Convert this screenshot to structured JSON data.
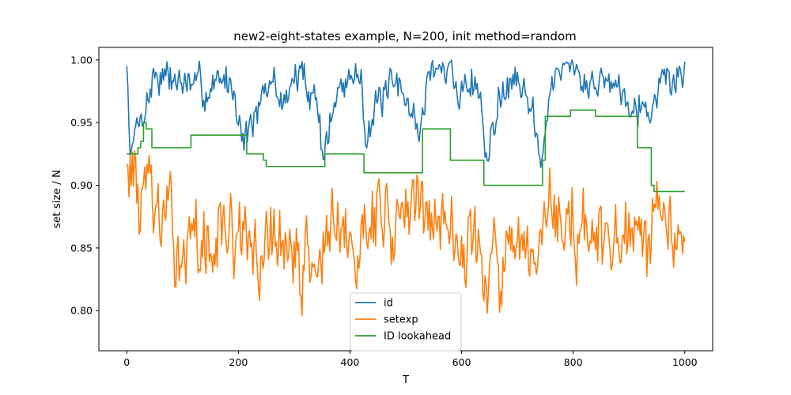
{
  "chart_data": {
    "type": "line",
    "title": "new2-eight-states example, N=200, init method=random",
    "xlabel": "T",
    "ylabel": "set size / N",
    "xlim": [
      -50,
      1050
    ],
    "ylim": [
      0.768,
      1.01
    ],
    "xticks": [
      0,
      200,
      400,
      600,
      800,
      1000
    ],
    "xtick_labels": [
      "0",
      "200",
      "400",
      "600",
      "800",
      "1000"
    ],
    "yticks": [
      0.8,
      0.85,
      0.9,
      0.95,
      1.0
    ],
    "ytick_labels": [
      "0.80",
      "0.85",
      "0.90",
      "0.95",
      "1.00"
    ],
    "grid": false,
    "legend_position": "lower-center",
    "series": [
      {
        "name": "id",
        "color": "#1f77b4",
        "x": [
          0,
          5,
          10,
          20,
          35,
          50,
          80,
          110,
          140,
          170,
          190,
          205,
          210,
          220,
          240,
          260,
          280,
          300,
          320,
          340,
          350,
          360,
          380,
          400,
          420,
          430,
          440,
          470,
          500,
          525,
          535,
          545,
          580,
          600,
          630,
          645,
          660,
          680,
          700,
          720,
          745,
          755,
          780,
          800,
          830,
          850,
          870,
          890,
          910,
          930,
          945,
          960,
          980,
          1000
        ],
        "values": [
          0.995,
          0.94,
          0.93,
          0.95,
          0.965,
          0.99,
          0.985,
          0.98,
          0.975,
          0.985,
          0.98,
          0.95,
          0.935,
          0.95,
          0.96,
          0.985,
          0.965,
          0.985,
          0.985,
          0.97,
          0.93,
          0.94,
          0.975,
          0.985,
          0.99,
          0.94,
          0.955,
          0.975,
          0.975,
          0.94,
          0.97,
          0.995,
          0.99,
          0.975,
          0.985,
          0.925,
          0.96,
          0.975,
          0.985,
          0.975,
          0.915,
          0.975,
          0.985,
          0.99,
          0.98,
          0.985,
          0.985,
          0.975,
          0.97,
          0.96,
          0.965,
          0.985,
          0.985,
          0.99
        ]
      },
      {
        "name": "setexp",
        "color": "#ff7f0e",
        "x": [
          0,
          5,
          10,
          20,
          30,
          40,
          50,
          60,
          70,
          80,
          100,
          120,
          140,
          160,
          180,
          200,
          220,
          240,
          260,
          280,
          300,
          320,
          340,
          360,
          380,
          400,
          415,
          425,
          435,
          450,
          470,
          490,
          510,
          530,
          550,
          570,
          590,
          610,
          630,
          650,
          670,
          690,
          710,
          730,
          745,
          755,
          770,
          790,
          810,
          830,
          850,
          870,
          890,
          910,
          930,
          945,
          955,
          970,
          985,
          1000
        ],
        "values": [
          0.93,
          0.91,
          0.92,
          0.89,
          0.88,
          0.9,
          0.88,
          0.87,
          0.87,
          0.86,
          0.855,
          0.85,
          0.845,
          0.86,
          0.865,
          0.855,
          0.845,
          0.84,
          0.86,
          0.855,
          0.835,
          0.84,
          0.835,
          0.86,
          0.855,
          0.845,
          0.835,
          0.89,
          0.885,
          0.88,
          0.875,
          0.87,
          0.88,
          0.885,
          0.875,
          0.87,
          0.865,
          0.855,
          0.845,
          0.84,
          0.835,
          0.84,
          0.835,
          0.83,
          0.845,
          0.88,
          0.875,
          0.87,
          0.865,
          0.86,
          0.85,
          0.845,
          0.855,
          0.85,
          0.845,
          0.855,
          0.88,
          0.875,
          0.87,
          0.87
        ]
      },
      {
        "name": "ID lookahead",
        "color": "#2ca02c",
        "x": [
          0,
          20,
          20,
          25,
          25,
          30,
          30,
          35,
          35,
          45,
          45,
          115,
          115,
          215,
          215,
          245,
          245,
          250,
          250,
          355,
          355,
          425,
          425,
          530,
          530,
          580,
          580,
          640,
          640,
          745,
          745,
          750,
          750,
          795,
          795,
          840,
          840,
          915,
          915,
          940,
          940,
          945,
          945,
          1000
        ],
        "values": [
          0.925,
          0.925,
          0.93,
          0.93,
          0.935,
          0.935,
          0.95,
          0.95,
          0.945,
          0.945,
          0.93,
          0.93,
          0.94,
          0.94,
          0.925,
          0.925,
          0.92,
          0.92,
          0.915,
          0.915,
          0.925,
          0.925,
          0.91,
          0.91,
          0.945,
          0.945,
          0.92,
          0.92,
          0.9,
          0.9,
          0.92,
          0.92,
          0.955,
          0.955,
          0.96,
          0.96,
          0.955,
          0.955,
          0.93,
          0.93,
          0.9,
          0.9,
          0.895,
          0.895
        ]
      }
    ]
  }
}
